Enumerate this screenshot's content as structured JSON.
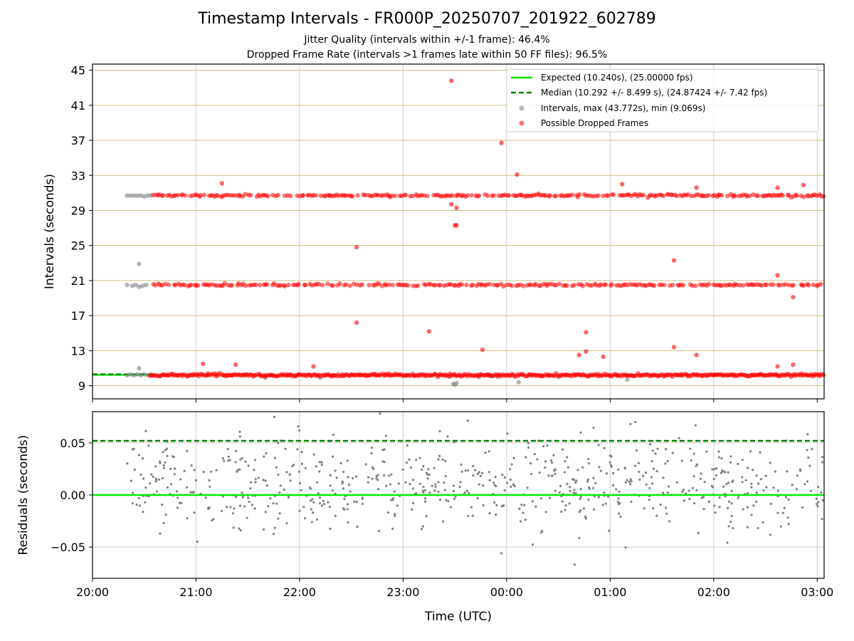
{
  "chart_data": {
    "type": "scatter",
    "title": "Timestamp Intervals - FR000P_20250707_201922_602789",
    "subtitle_1": "Jitter Quality (intervals within +/-1 frame): 46.4%",
    "subtitle_2": "Dropped Frame Rate (intervals >1 frames late within 50 FF files): 96.5%",
    "xlabel": "Time (UTC)",
    "x_tick_labels": [
      "20:00",
      "21:00",
      "22:00",
      "23:00",
      "00:00",
      "01:00",
      "02:00",
      "03:00"
    ],
    "xlim": [
      "20:00",
      "03:04"
    ],
    "top_panel": {
      "ylabel": "Intervals (seconds)",
      "ylim": [
        7.5,
        45.7
      ],
      "y_ticks": [
        9,
        13,
        17,
        21,
        25,
        29,
        33,
        37,
        41,
        45
      ],
      "y_tick_labels": [
        "9",
        "13",
        "17",
        "21",
        "25",
        "29",
        "33",
        "37",
        "41",
        "45"
      ],
      "grid": true,
      "legend_position": "top-right",
      "legend": [
        {
          "label": "Expected (10.240s), (25.00000 fps)",
          "style": "solid-line",
          "color": "#00ee00"
        },
        {
          "label": "Median (10.292 +/- 8.499 s), (24.87424 +/- 7.42 fps)",
          "style": "dashed-line",
          "color": "#008000"
        },
        {
          "label": "Intervals, max (43.772s), min (9.069s)",
          "style": "marker",
          "color": "#808080"
        },
        {
          "label": "Possible Dropped Frames",
          "style": "marker",
          "color": "#ff0000"
        }
      ],
      "expected_interval": 10.24,
      "median_interval": 10.292,
      "series": [
        {
          "name": "Intervals, max (43.772s), min (9.069s)",
          "color": "#808080",
          "points": [
            [
              "20:20",
              30.7
            ],
            [
              "20:22",
              30.7
            ],
            [
              "20:24",
              30.7
            ],
            [
              "20:26",
              30.7
            ],
            [
              "20:28",
              30.7
            ],
            [
              "20:30",
              30.6
            ],
            [
              "20:32",
              30.7
            ],
            [
              "20:34",
              30.7
            ],
            [
              "20:20",
              20.5
            ],
            [
              "20:23",
              20.4
            ],
            [
              "20:25",
              20.5
            ],
            [
              "20:27",
              20.3
            ],
            [
              "20:29",
              20.4
            ],
            [
              "20:31",
              20.5
            ],
            [
              "20:27",
              22.9
            ],
            [
              "20:27",
              11.0
            ],
            [
              "20:20",
              10.2
            ],
            [
              "20:22",
              10.3
            ],
            [
              "20:24",
              10.2
            ],
            [
              "20:26",
              10.3
            ],
            [
              "20:28",
              10.2
            ],
            [
              "20:30",
              10.3
            ],
            [
              "20:32",
              10.2
            ],
            [
              "20:34",
              10.3
            ],
            [
              "21:40",
              9.9
            ],
            [
              "22:12",
              9.9
            ],
            [
              "23:27",
              10.0
            ],
            [
              "23:44",
              10.0
            ],
            [
              "23:55",
              10.0
            ],
            [
              "23:50",
              10.1
            ],
            [
              "00:07",
              9.4
            ],
            [
              "00:30",
              10.0
            ],
            [
              "01:10",
              9.7
            ],
            [
              "23:29",
              9.2
            ],
            [
              "23:30",
              9.1
            ],
            [
              "23:31",
              9.3
            ]
          ]
        },
        {
          "name": "Possible Dropped Frames",
          "color": "#ff0000",
          "bands": [
            {
              "level": 10.2,
              "from": "20:33",
              "to": "03:04",
              "count": 520
            },
            {
              "level": 20.5,
              "from": "20:35",
              "to": "03:04",
              "count": 300
            },
            {
              "level": 30.7,
              "from": "20:35",
              "to": "03:04",
              "count": 340
            }
          ],
          "points": [
            [
              "23:28",
              43.8
            ],
            [
              "23:57",
              36.7
            ],
            [
              "00:06",
              33.1
            ],
            [
              "21:15",
              32.1
            ],
            [
              "01:07",
              32.0
            ],
            [
              "02:52",
              31.9
            ],
            [
              "01:50",
              31.6
            ],
            [
              "02:37",
              31.6
            ],
            [
              "23:28",
              29.7
            ],
            [
              "23:31",
              29.3
            ],
            [
              "23:30",
              27.3
            ],
            [
              "23:31",
              27.3
            ],
            [
              "22:33",
              24.8
            ],
            [
              "01:37",
              23.3
            ],
            [
              "02:37",
              21.6
            ],
            [
              "02:46",
              19.1
            ],
            [
              "22:33",
              16.2
            ],
            [
              "23:15",
              15.2
            ],
            [
              "00:46",
              15.1
            ],
            [
              "01:37",
              13.4
            ],
            [
              "23:46",
              13.1
            ],
            [
              "00:46",
              12.9
            ],
            [
              "00:42",
              12.5
            ],
            [
              "00:56",
              12.3
            ],
            [
              "01:50",
              12.5
            ],
            [
              "21:04",
              11.5
            ],
            [
              "21:23",
              11.4
            ],
            [
              "22:08",
              11.2
            ],
            [
              "02:37",
              11.2
            ],
            [
              "02:46",
              11.4
            ]
          ]
        }
      ]
    },
    "bottom_panel": {
      "ylabel": "Residuals (seconds)",
      "ylim": [
        -0.08,
        0.08
      ],
      "y_ticks": [
        -0.05,
        0.0,
        0.05
      ],
      "y_tick_labels": [
        "−0.05",
        "0.00",
        "0.05"
      ],
      "grid": true,
      "expected_residual": 0.0,
      "median_residual": 0.052,
      "residuals": {
        "color": "#808080",
        "from": "20:20",
        "to": "03:04",
        "count": 700,
        "mean": 0.01,
        "sd": 0.022
      }
    }
  }
}
